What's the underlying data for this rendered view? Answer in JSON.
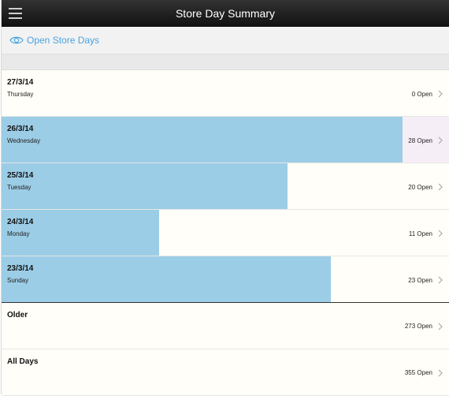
{
  "header": {
    "title": "Store Day Summary"
  },
  "toolbar": {
    "open_days_label": "Open Store Days",
    "icon": "eye-icon"
  },
  "colors": {
    "bar": "#9ccde6",
    "accent": "#4aa3df",
    "selected": "#f6eef7"
  },
  "days": [
    {
      "date": "27/3/14",
      "day": "Thursday",
      "count": "0 Open",
      "fraction": 0.0
    },
    {
      "date": "26/3/14",
      "day": "Wednesday",
      "count": "28 Open",
      "fraction": 1.0
    },
    {
      "date": "25/3/14",
      "day": "Tuesday",
      "count": "20 Open",
      "fraction": 0.714
    },
    {
      "date": "24/3/14",
      "day": "Monday",
      "count": "11 Open",
      "fraction": 0.393
    },
    {
      "date": "23/3/14",
      "day": "Sunday",
      "count": "23 Open",
      "fraction": 0.821
    }
  ],
  "summary": [
    {
      "label": "Older",
      "count": "273 Open"
    },
    {
      "label": "All Days",
      "count": "355 Open"
    }
  ]
}
